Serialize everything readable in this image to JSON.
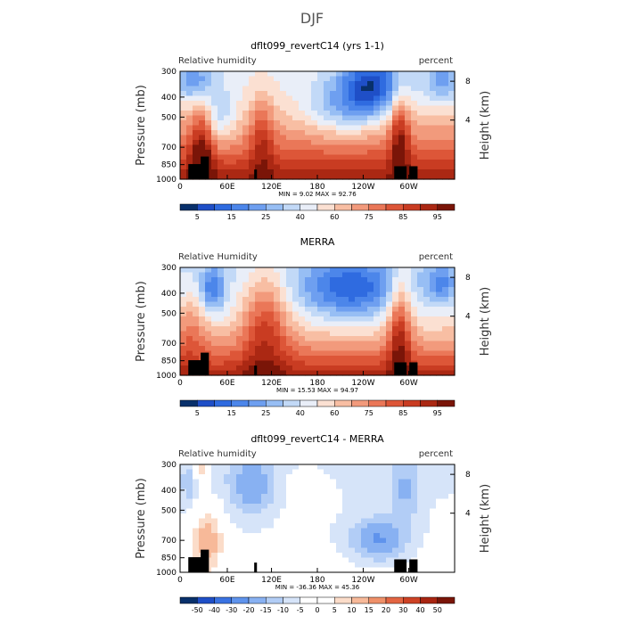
{
  "figure_title": "DJF",
  "chart_data": [
    {
      "type": "heatmap",
      "title": "dflt099_revertC14 (yrs 1-1)",
      "left_label": "Relative humidity",
      "right_label": "percent",
      "ylabel": "Pressure (mb)",
      "ylabel_right": "Height (km)",
      "pressure_ticks": [
        "300",
        "400",
        "500",
        "700",
        "850",
        "1000"
      ],
      "height_ticks": [
        "8",
        "4"
      ],
      "lon_ticks": [
        "0",
        "60E",
        "120E",
        "180",
        "120W",
        "60W"
      ],
      "stats": "MIN =    9.02   MAX =   92.76",
      "colorbar_labels": [
        "5",
        "15",
        "25",
        "40",
        "60",
        "75",
        "85",
        "95"
      ],
      "kind": "model"
    },
    {
      "type": "heatmap",
      "title": "MERRA",
      "left_label": "Relative Humidity",
      "right_label": "percent",
      "ylabel": "Pressure (mb)",
      "ylabel_right": "Height (km)",
      "pressure_ticks": [
        "300",
        "400",
        "500",
        "700",
        "850",
        "1000"
      ],
      "height_ticks": [
        "8",
        "4"
      ],
      "lon_ticks": [
        "0",
        "60E",
        "120E",
        "180",
        "120W",
        "60W"
      ],
      "stats": "MIN =   15.53   MAX =   94.97",
      "colorbar_labels": [
        "5",
        "15",
        "25",
        "40",
        "60",
        "75",
        "85",
        "95"
      ],
      "kind": "obs"
    },
    {
      "type": "heatmap",
      "title": "dflt099_revertC14 - MERRA",
      "left_label": "Relative humidity",
      "right_label": "percent",
      "ylabel": "Pressure (mb)",
      "ylabel_right": "Height (km)",
      "pressure_ticks": [
        "300",
        "400",
        "500",
        "700",
        "850",
        "1000"
      ],
      "height_ticks": [
        "8",
        "4"
      ],
      "lon_ticks": [
        "0",
        "60E",
        "120E",
        "180",
        "120W",
        "60W"
      ],
      "stats": "MIN =  -36.36   MAX =   45.36",
      "colorbar_labels": [
        "-50",
        "-40",
        "-30",
        "-20",
        "-15",
        "-10",
        "-5",
        "0",
        "5",
        "10",
        "15",
        "20",
        "30",
        "40",
        "50"
      ],
      "kind": "diff"
    }
  ]
}
